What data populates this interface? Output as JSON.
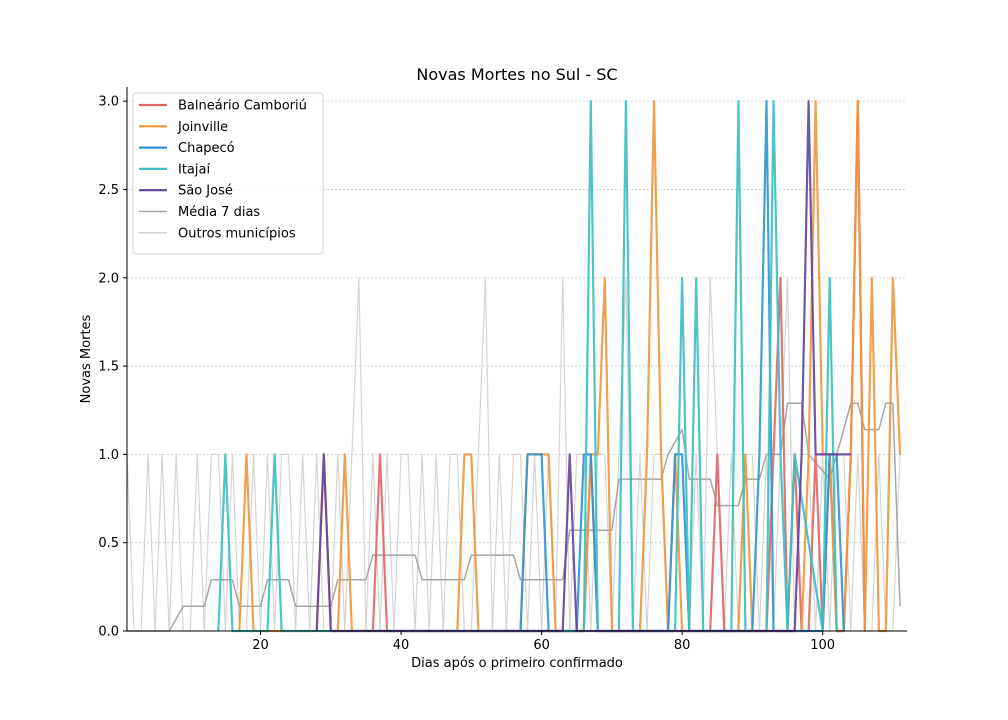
{
  "chart_data": {
    "type": "line",
    "title": "Novas Mortes no Sul - SC",
    "xlabel": "Dias após o primeiro confirmado",
    "ylabel": "Novas Mortes",
    "xlim": [
      1,
      112
    ],
    "ylim": [
      0,
      3.08
    ],
    "xticks": [
      20,
      40,
      60,
      80,
      100
    ],
    "yticks": [
      0.0,
      0.5,
      1.0,
      1.5,
      2.0,
      2.5,
      3.0
    ],
    "ytick_labels": [
      "0.0",
      "0.5",
      "1.0",
      "1.5",
      "2.0",
      "2.5",
      "3.0"
    ],
    "grid": "horizontal",
    "legend_position": "upper-left",
    "series": [
      {
        "name": "Balneário Camboriú",
        "color": "#e06666",
        "x": [
          36,
          37,
          38,
          66,
          67,
          68,
          84,
          85,
          86,
          92,
          93,
          94,
          95,
          96,
          97,
          98,
          99,
          100,
          101,
          102,
          103,
          104,
          105,
          106
        ],
        "values": [
          0,
          1,
          0,
          0,
          1,
          0,
          0,
          1,
          0,
          0,
          1,
          2,
          0,
          1,
          0,
          0,
          1,
          0,
          1,
          0,
          0,
          1,
          3,
          0
        ]
      },
      {
        "name": "Joinville",
        "color": "#f0963c",
        "x": [
          17,
          18,
          19,
          28,
          29,
          30,
          31,
          32,
          33,
          34,
          48,
          49,
          50,
          51,
          52,
          57,
          58,
          59,
          60,
          61,
          62,
          66,
          67,
          68,
          69,
          70,
          71,
          74,
          75,
          76,
          77,
          78,
          79,
          80,
          88,
          89,
          90,
          97,
          98,
          99,
          100,
          101,
          102,
          103,
          104,
          105,
          106,
          107,
          108,
          109,
          110,
          111
        ],
        "values": [
          0,
          1,
          0,
          0,
          1,
          0,
          0,
          1,
          0,
          0,
          0,
          1,
          1,
          0,
          0,
          0,
          1,
          1,
          1,
          1,
          0,
          0,
          1,
          1,
          2,
          0,
          0,
          0,
          1,
          3,
          1,
          0,
          1,
          0,
          0,
          1,
          0,
          0,
          1,
          3,
          1,
          1,
          0,
          0,
          1,
          3,
          0,
          2,
          0,
          0,
          2,
          1
        ]
      },
      {
        "name": "Chapecó",
        "color": "#2f95d6",
        "x": [
          57,
          58,
          59,
          60,
          61,
          65,
          66,
          67,
          68,
          69,
          78,
          79,
          80,
          81,
          90,
          91,
          92,
          93,
          100,
          101,
          102,
          103
        ],
        "values": [
          0,
          1,
          1,
          1,
          0,
          0,
          1,
          1,
          0,
          0,
          0,
          1,
          1,
          0,
          0,
          1,
          3,
          0,
          0,
          1,
          1,
          0
        ]
      },
      {
        "name": "Itajaí",
        "color": "#3bbfbf",
        "x": [
          14,
          15,
          16,
          21,
          22,
          23,
          66,
          67,
          68,
          71,
          72,
          73,
          79,
          80,
          81,
          82,
          83,
          87,
          88,
          89,
          92,
          93,
          94,
          95,
          96,
          100,
          101,
          102
        ],
        "values": [
          0,
          1,
          0,
          0,
          1,
          0,
          0,
          3,
          0,
          0,
          3,
          0,
          0,
          2,
          0,
          2,
          0,
          0,
          3,
          0,
          0,
          3,
          1,
          0,
          1,
          0,
          2,
          0
        ]
      },
      {
        "name": "São José",
        "color": "#63449b",
        "x": [
          28,
          29,
          30,
          63,
          64,
          65,
          96,
          97,
          98,
          99,
          100,
          101,
          102,
          103,
          104
        ],
        "values": [
          0,
          1,
          0,
          0,
          1,
          0,
          0,
          1,
          3,
          1,
          1,
          1,
          1,
          1,
          1
        ]
      },
      {
        "name": "Média 7 dias",
        "color": "#a6a6a6",
        "x": [
          1,
          7,
          9,
          12,
          13,
          16,
          17,
          20,
          21,
          24,
          25,
          30,
          31,
          35,
          36,
          42,
          43,
          49,
          50,
          56,
          57,
          63,
          64,
          70,
          71,
          77,
          78,
          80,
          81,
          84,
          85,
          88,
          89,
          91,
          92,
          94,
          95,
          97,
          98,
          101,
          102,
          103,
          104,
          105,
          106,
          107,
          108,
          109,
          110,
          111
        ],
        "values": [
          0,
          0,
          0.14,
          0.14,
          0.29,
          0.29,
          0.14,
          0.14,
          0.29,
          0.29,
          0.14,
          0.14,
          0.29,
          0.29,
          0.43,
          0.43,
          0.29,
          0.29,
          0.43,
          0.43,
          0.29,
          0.29,
          0.57,
          0.57,
          0.86,
          0.86,
          1.0,
          1.14,
          0.86,
          0.86,
          0.71,
          0.71,
          0.86,
          0.86,
          1.0,
          1.0,
          1.29,
          1.29,
          1.0,
          0.86,
          1.0,
          1.14,
          1.29,
          1.29,
          1.14,
          1.14,
          1.14,
          1.29,
          1.29,
          0.14
        ]
      },
      {
        "name": "Outros municípios",
        "color": "#d4d4d4",
        "x": [
          1,
          2,
          3,
          4,
          5,
          6,
          7,
          8,
          9,
          10,
          11,
          12,
          13,
          14,
          15,
          16,
          17,
          18,
          19,
          20,
          21,
          22,
          23,
          24,
          25,
          26,
          27,
          28,
          29,
          30,
          31,
          32,
          33,
          34,
          35,
          36,
          37,
          38,
          39,
          40,
          41,
          42,
          43,
          44,
          45,
          46,
          47,
          48,
          49,
          50,
          51,
          52,
          53,
          54,
          55,
          56,
          57,
          58,
          59,
          60,
          61,
          62,
          63,
          64,
          65,
          66,
          67,
          68,
          69,
          70,
          71,
          72,
          73,
          74,
          75,
          76,
          77,
          78,
          79,
          80,
          81,
          82,
          83,
          84,
          85,
          86,
          87,
          88,
          89,
          90,
          91,
          92,
          93,
          94,
          95,
          96,
          97,
          98,
          99,
          100,
          101,
          102,
          103,
          104,
          105,
          106,
          107,
          108,
          109,
          110,
          111
        ],
        "values": [
          1,
          0,
          0,
          1,
          0,
          1,
          0,
          1,
          0,
          0,
          1,
          0,
          1,
          1,
          0,
          1,
          0,
          0,
          1,
          0,
          1,
          0,
          1,
          1,
          0,
          1,
          0,
          1,
          0,
          0,
          1,
          0,
          1,
          2,
          0,
          1,
          0,
          1,
          0,
          1,
          1,
          0,
          1,
          0,
          1,
          0,
          1,
          1,
          0,
          0,
          1,
          2,
          0,
          1,
          0,
          1,
          1,
          0,
          1,
          0,
          1,
          0,
          2,
          0,
          1,
          1,
          0,
          1,
          1,
          0,
          1,
          2,
          0,
          1,
          0,
          1,
          1,
          0,
          1,
          1,
          0,
          1,
          0,
          2,
          1,
          0,
          1,
          0,
          1,
          1,
          0,
          1,
          0,
          1,
          2,
          0,
          1,
          1,
          0,
          1,
          0,
          1,
          1,
          0,
          1,
          0,
          0,
          1,
          0,
          0,
          1
        ]
      }
    ]
  }
}
